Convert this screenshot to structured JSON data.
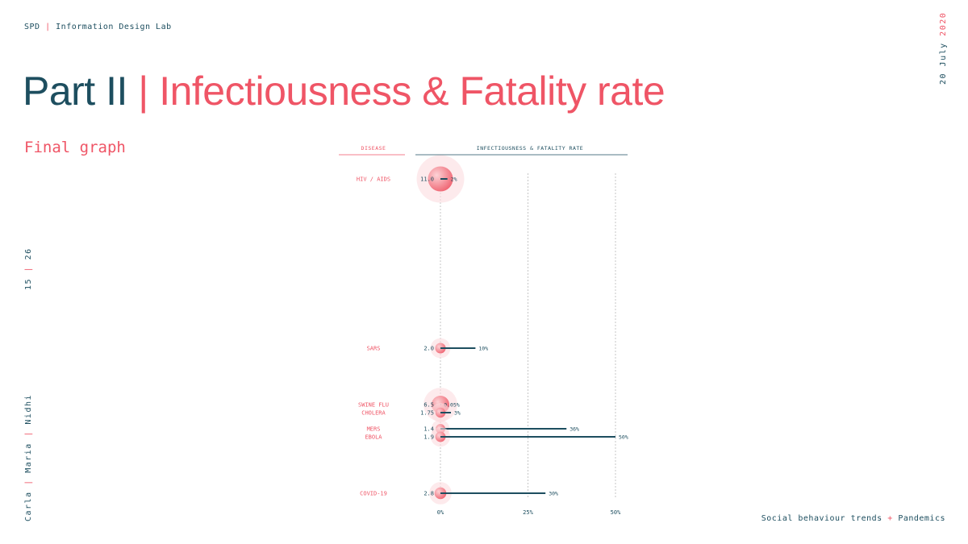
{
  "header": {
    "org": "SPD",
    "separator": "|",
    "lab": "Information Design Lab"
  },
  "title": {
    "part": "Part II",
    "separator": "|",
    "topic": "Infectiousness & Fatality rate"
  },
  "subtitle": "Final graph",
  "date": {
    "day_month": "20 July",
    "year": "2020"
  },
  "page": {
    "current": "15",
    "separator": "|",
    "total": "26"
  },
  "authors": [
    "Carla",
    "Maria",
    "Nidhi"
  ],
  "author_separator": "|",
  "footer": {
    "left": "Social behaviour trends",
    "plus": "+",
    "right": "Pandemics"
  },
  "colors": {
    "teal": "#1d4e5f",
    "pink": "#ef5566",
    "pink_light": "#fbdcdf"
  },
  "chart_data": {
    "type": "scatter",
    "column_headers": {
      "disease": "DISEASE",
      "rate": "INFECTIOUSNESS & FATALITY RATE"
    },
    "x_ticks": [
      {
        "value": 0,
        "label": "0%"
      },
      {
        "value": 25,
        "label": "25%"
      },
      {
        "value": 50,
        "label": "50%"
      }
    ],
    "xlim": [
      0,
      50
    ],
    "series": [
      {
        "disease": "HIV / AIDS",
        "r0": 11.0,
        "r0_label": "11.0",
        "fatality": 2,
        "fatality_label": "2%"
      },
      {
        "disease": "SARS",
        "r0": 2.0,
        "r0_label": "2.0",
        "fatality": 10,
        "fatality_label": "10%"
      },
      {
        "disease": "SWINE FLU",
        "r0": 6.5,
        "r0_label": "6.5",
        "fatality": 0.05,
        "fatality_label": "0.05%"
      },
      {
        "disease": "CHOLERA",
        "r0": 1.75,
        "r0_label": "1.75",
        "fatality": 3,
        "fatality_label": "3%"
      },
      {
        "disease": "MERS",
        "r0": 1.4,
        "r0_label": "1.4",
        "fatality": 36,
        "fatality_label": "36%"
      },
      {
        "disease": "EBOLA",
        "r0": 1.9,
        "r0_label": "1.9",
        "fatality": 50,
        "fatality_label": "50%"
      },
      {
        "disease": "COVID-19",
        "r0": 2.8,
        "r0_label": "2.8",
        "fatality": 30,
        "fatality_label": "30%"
      }
    ]
  }
}
